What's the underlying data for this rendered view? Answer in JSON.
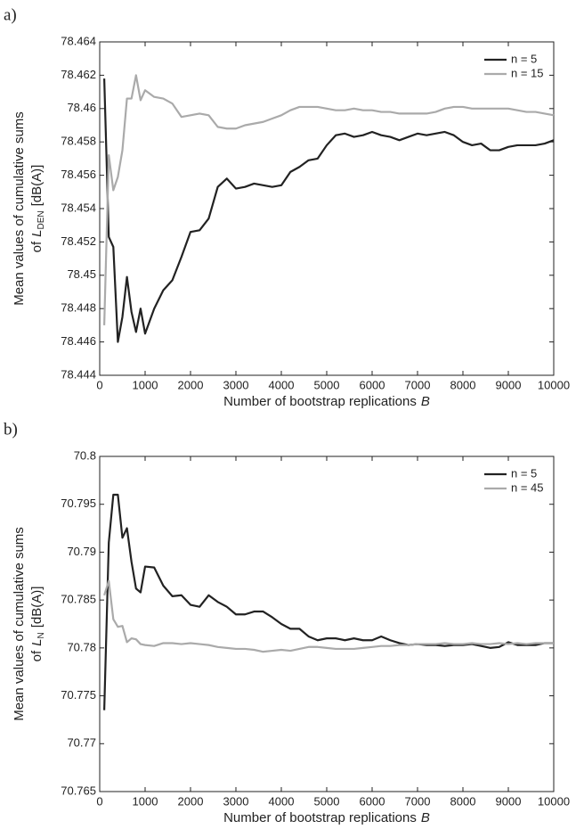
{
  "chart_data": [
    {
      "type": "line",
      "panel_label": "a)",
      "xlabel": [
        "Number of bootstrap replications",
        "B"
      ],
      "ylabel": [
        "Mean values of cumulative sums",
        "of",
        "L",
        "DEN",
        "[dB(A)]"
      ],
      "xlim": [
        0,
        10000
      ],
      "xticks": [
        0,
        1000,
        2000,
        3000,
        4000,
        5000,
        6000,
        7000,
        8000,
        9000,
        10000
      ],
      "ylim": [
        78.444,
        78.464
      ],
      "yticks": [
        78.444,
        78.446,
        78.448,
        78.45,
        78.452,
        78.454,
        78.456,
        78.458,
        78.46,
        78.462,
        78.464
      ],
      "legend": "upper right",
      "x": [
        100,
        200,
        300,
        400,
        500,
        600,
        700,
        800,
        900,
        1000,
        1200,
        1400,
        1600,
        1800,
        2000,
        2200,
        2400,
        2600,
        2800,
        3000,
        3200,
        3400,
        3600,
        3800,
        4000,
        4200,
        4400,
        4600,
        4800,
        5000,
        5200,
        5400,
        5600,
        5800,
        6000,
        6200,
        6400,
        6600,
        6800,
        7000,
        7200,
        7400,
        7600,
        7800,
        8000,
        8200,
        8400,
        8600,
        8800,
        9000,
        9200,
        9400,
        9600,
        9800,
        10000
      ],
      "series": [
        {
          "name": "n = 5",
          "color": "#222222",
          "values": [
            78.4618,
            78.4523,
            78.4517,
            78.446,
            78.4475,
            78.4499,
            78.4478,
            78.4466,
            78.448,
            78.4465,
            78.448,
            78.4491,
            78.4497,
            78.4511,
            78.4526,
            78.4527,
            78.4534,
            78.4553,
            78.4558,
            78.4552,
            78.4553,
            78.4555,
            78.4554,
            78.4553,
            78.4554,
            78.4562,
            78.4565,
            78.4569,
            78.457,
            78.4578,
            78.4584,
            78.4585,
            78.4583,
            78.4584,
            78.4586,
            78.4584,
            78.4583,
            78.4581,
            78.4583,
            78.4585,
            78.4584,
            78.4585,
            78.4586,
            78.4584,
            78.458,
            78.4578,
            78.4579,
            78.4575,
            78.4575,
            78.4577,
            78.4578,
            78.4578,
            78.4578,
            78.4579,
            78.4581
          ]
        },
        {
          "name": "n = 15",
          "color": "#aaaaaa",
          "values": [
            78.447,
            78.4572,
            78.4551,
            78.4559,
            78.4575,
            78.4606,
            78.4606,
            78.462,
            78.4605,
            78.4611,
            78.4607,
            78.4606,
            78.4603,
            78.4595,
            78.4596,
            78.4597,
            78.4596,
            78.4589,
            78.4588,
            78.4588,
            78.459,
            78.4591,
            78.4592,
            78.4594,
            78.4596,
            78.4599,
            78.4601,
            78.4601,
            78.4601,
            78.46,
            78.4599,
            78.4599,
            78.46,
            78.4599,
            78.4599,
            78.4598,
            78.4598,
            78.4597,
            78.4597,
            78.4597,
            78.4597,
            78.4598,
            78.46,
            78.4601,
            78.4601,
            78.46,
            78.46,
            78.46,
            78.46,
            78.46,
            78.4599,
            78.4598,
            78.4598,
            78.4597,
            78.4596
          ]
        }
      ]
    },
    {
      "type": "line",
      "panel_label": "b)",
      "xlabel": [
        "Number of bootstrap replications",
        "B"
      ],
      "ylabel": [
        "Mean values of cumulative sums",
        "of",
        "L",
        "N",
        "[dB(A)]"
      ],
      "xlim": [
        0,
        10000
      ],
      "xticks": [
        0,
        1000,
        2000,
        3000,
        4000,
        5000,
        6000,
        7000,
        8000,
        9000,
        10000
      ],
      "ylim": [
        70.765,
        70.8
      ],
      "yticks": [
        70.765,
        70.77,
        70.775,
        70.78,
        70.785,
        70.79,
        70.795,
        70.8
      ],
      "legend": "upper right",
      "x": [
        100,
        200,
        300,
        400,
        500,
        600,
        700,
        800,
        900,
        1000,
        1200,
        1400,
        1600,
        1800,
        2000,
        2200,
        2400,
        2600,
        2800,
        3000,
        3200,
        3400,
        3600,
        3800,
        4000,
        4200,
        4400,
        4600,
        4800,
        5000,
        5200,
        5400,
        5600,
        5800,
        6000,
        6200,
        6400,
        6600,
        6800,
        7000,
        7200,
        7400,
        7600,
        7800,
        8000,
        8200,
        8400,
        8600,
        8800,
        9000,
        9200,
        9400,
        9600,
        9800,
        10000
      ],
      "series": [
        {
          "name": "n = 5",
          "color": "#222222",
          "values": [
            70.7735,
            70.791,
            70.796,
            70.796,
            70.7915,
            70.7925,
            70.789,
            70.7862,
            70.7858,
            70.7885,
            70.7884,
            70.7865,
            70.7854,
            70.7855,
            70.7845,
            70.7843,
            70.7855,
            70.7848,
            70.7843,
            70.7835,
            70.7835,
            70.7838,
            70.7838,
            70.7832,
            70.7825,
            70.782,
            70.782,
            70.7812,
            70.7808,
            70.781,
            70.781,
            70.7808,
            70.781,
            70.7808,
            70.7808,
            70.7812,
            70.7808,
            70.7805,
            70.7803,
            70.7804,
            70.7803,
            70.7803,
            70.7802,
            70.7803,
            70.7803,
            70.7804,
            70.7802,
            70.78,
            70.7801,
            70.7806,
            70.7803,
            70.7803,
            70.7803,
            70.7805,
            70.7805
          ]
        },
        {
          "name": "n = 45",
          "color": "#aaaaaa",
          "values": [
            70.7855,
            70.787,
            70.783,
            70.7822,
            70.7823,
            70.7806,
            70.781,
            70.7809,
            70.7804,
            70.7803,
            70.7802,
            70.7805,
            70.7805,
            70.7804,
            70.7805,
            70.7804,
            70.7803,
            70.7801,
            70.78,
            70.7799,
            70.7799,
            70.7798,
            70.7796,
            70.7797,
            70.7798,
            70.7797,
            70.7799,
            70.7801,
            70.7801,
            70.78,
            70.7799,
            70.7799,
            70.7799,
            70.78,
            70.7801,
            70.7802,
            70.7802,
            70.7803,
            70.7803,
            70.7804,
            70.7804,
            70.7804,
            70.7805,
            70.7804,
            70.7804,
            70.7805,
            70.7804,
            70.7804,
            70.7805,
            70.7804,
            70.7805,
            70.7804,
            70.7805,
            70.7805,
            70.7805
          ]
        }
      ]
    }
  ]
}
